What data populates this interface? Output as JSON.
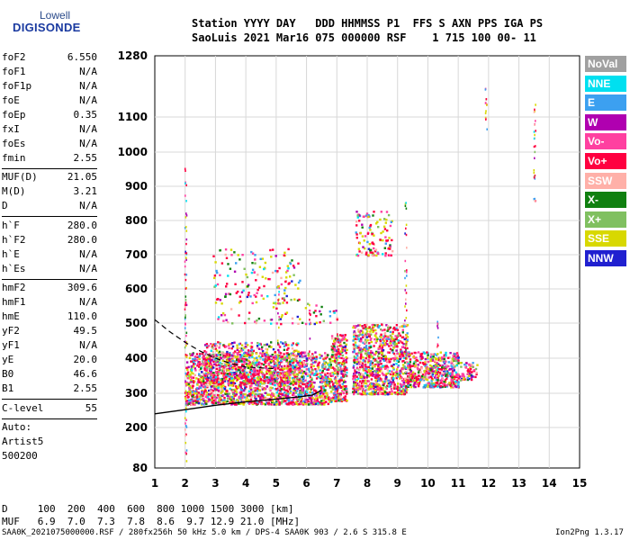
{
  "logo": {
    "line1": "Lowell",
    "line2": "DIGISONDE"
  },
  "header": {
    "line1": "Station YYYY DAY   DDD HHMMSS P1  FFS S AXN PPS IGA PS",
    "line2": "SaoLuis 2021 Mar16 075 000000 RSF    1 715 100 00- 11"
  },
  "params": {
    "group1": [
      {
        "label": "foF2",
        "value": "6.550"
      },
      {
        "label": "foF1",
        "value": "N/A"
      },
      {
        "label": "foF1p",
        "value": "N/A"
      },
      {
        "label": "foE",
        "value": "N/A"
      },
      {
        "label": "foEp",
        "value": "0.35"
      },
      {
        "label": "fxI",
        "value": "N/A"
      },
      {
        "label": "foEs",
        "value": "N/A"
      },
      {
        "label": "fmin",
        "value": "2.55"
      }
    ],
    "group2": [
      {
        "label": "MUF(D)",
        "value": "21.05"
      },
      {
        "label": "M(D)",
        "value": "3.21"
      },
      {
        "label": "D",
        "value": "N/A"
      }
    ],
    "group3": [
      {
        "label": "h`F",
        "value": "280.0"
      },
      {
        "label": "h`F2",
        "value": "280.0"
      },
      {
        "label": "h`E",
        "value": "N/A"
      },
      {
        "label": "h`Es",
        "value": "N/A"
      }
    ],
    "group4": [
      {
        "label": "hmF2",
        "value": "309.6"
      },
      {
        "label": "hmF1",
        "value": "N/A"
      },
      {
        "label": "hmE",
        "value": "110.0"
      },
      {
        "label": "yF2",
        "value": "49.5"
      },
      {
        "label": "yF1",
        "value": "N/A"
      },
      {
        "label": "yE",
        "value": "20.0"
      },
      {
        "label": "B0",
        "value": "46.6"
      },
      {
        "label": "B1",
        "value": "2.55"
      }
    ],
    "clevel": {
      "label": "C-level",
      "value": "55"
    },
    "auto": [
      "Auto:",
      "Artist5",
      "500200"
    ]
  },
  "legend": [
    {
      "label": "NoVal",
      "color": "#a0a0a0",
      "text_color": "#ffffff"
    },
    {
      "label": "NNE",
      "color": "#00e0f0",
      "text_color": "#ffffff"
    },
    {
      "label": "E",
      "color": "#3ca0f0",
      "text_color": "#ffffff"
    },
    {
      "label": "W",
      "color": "#b000b0",
      "text_color": "#ffffff"
    },
    {
      "label": "Vo-",
      "color": "#ff40a0",
      "text_color": "#ffffff"
    },
    {
      "label": "Vo+",
      "color": "#ff0040",
      "text_color": "#ffffff"
    },
    {
      "label": "SSW",
      "color": "#ffb0a8",
      "text_color": "#ffffff"
    },
    {
      "label": "X-",
      "color": "#108010",
      "text_color": "#ffffff"
    },
    {
      "label": "X+",
      "color": "#80c060",
      "text_color": "#ffffff"
    },
    {
      "label": "SSE",
      "color": "#d8d800",
      "text_color": "#ffffff"
    },
    {
      "label": "NNW",
      "color": "#2020d0",
      "text_color": "#ffffff"
    }
  ],
  "bottom_table": {
    "d_line": "D     100  200  400  600  800 1000 1500 3000 [km]",
    "muf_line": "MUF   6.9  7.0  7.3  7.8  8.6  9.7 12.9 21.0 [MHz]"
  },
  "footer": {
    "left": "SAA0K_2021075000000.RSF / 280fx256h 50 kHz 5.0 km / DPS-4 SAA0K 903 / 2.6 S 315.8 E",
    "right": "Ion2Png 1.3.17"
  },
  "chart_data": {
    "type": "scatter",
    "x_ticks": [
      1,
      2,
      3,
      4,
      5,
      6,
      7,
      8,
      9,
      10,
      11,
      12,
      13,
      14,
      15
    ],
    "y_ticks": [
      80,
      200,
      300,
      400,
      500,
      600,
      700,
      800,
      900,
      1000,
      1100,
      1280
    ],
    "xlim": [
      1,
      15
    ],
    "ylim": [
      80,
      1280
    ],
    "grid": true,
    "point_clusters": [
      {
        "x": [
          2.0,
          6.8
        ],
        "y": [
          270,
          420
        ],
        "count": 1800
      },
      {
        "x": [
          2.6,
          5.8
        ],
        "y": [
          330,
          450
        ],
        "count": 600
      },
      {
        "x": [
          6.8,
          7.3
        ],
        "y": [
          280,
          470
        ],
        "count": 300
      },
      {
        "x": [
          7.5,
          9.3
        ],
        "y": [
          300,
          500
        ],
        "count": 900
      },
      {
        "x": [
          9.3,
          11.0
        ],
        "y": [
          320,
          420
        ],
        "count": 500
      },
      {
        "x": [
          11.0,
          11.6
        ],
        "y": [
          340,
          390
        ],
        "count": 60
      },
      {
        "x": [
          2.9,
          5.8
        ],
        "y": [
          560,
          720
        ],
        "count": 150
      },
      {
        "x": [
          7.6,
          8.8
        ],
        "y": [
          700,
          830
        ],
        "count": 120
      },
      {
        "x": [
          3.0,
          7.0
        ],
        "y": [
          500,
          560
        ],
        "count": 60
      }
    ],
    "vertical_streaks": [
      {
        "x": 2.0,
        "y": [
          90,
          960
        ]
      },
      {
        "x": 5.05,
        "y": [
          280,
          620
        ]
      },
      {
        "x": 6.1,
        "y": [
          280,
          560
        ]
      },
      {
        "x": 7.0,
        "y": [
          290,
          480
        ]
      },
      {
        "x": 9.25,
        "y": [
          300,
          860
        ]
      },
      {
        "x": 10.3,
        "y": [
          310,
          520
        ]
      },
      {
        "x": 11.9,
        "y": [
          1060,
          1240
        ]
      },
      {
        "x": 13.5,
        "y": [
          850,
          1140
        ]
      }
    ],
    "profile_solid": {
      "x": [
        1.0,
        2.0,
        3.0,
        4.0,
        5.0,
        5.8,
        6.2,
        6.5
      ],
      "y": [
        240,
        252,
        265,
        275,
        283,
        290,
        295,
        309
      ]
    },
    "profile_dashed": {
      "x": [
        1.0,
        1.5,
        2.0,
        2.5,
        3.0,
        3.5,
        4.0,
        5.0
      ],
      "y": [
        510,
        475,
        445,
        420,
        400,
        385,
        375,
        370
      ]
    }
  }
}
